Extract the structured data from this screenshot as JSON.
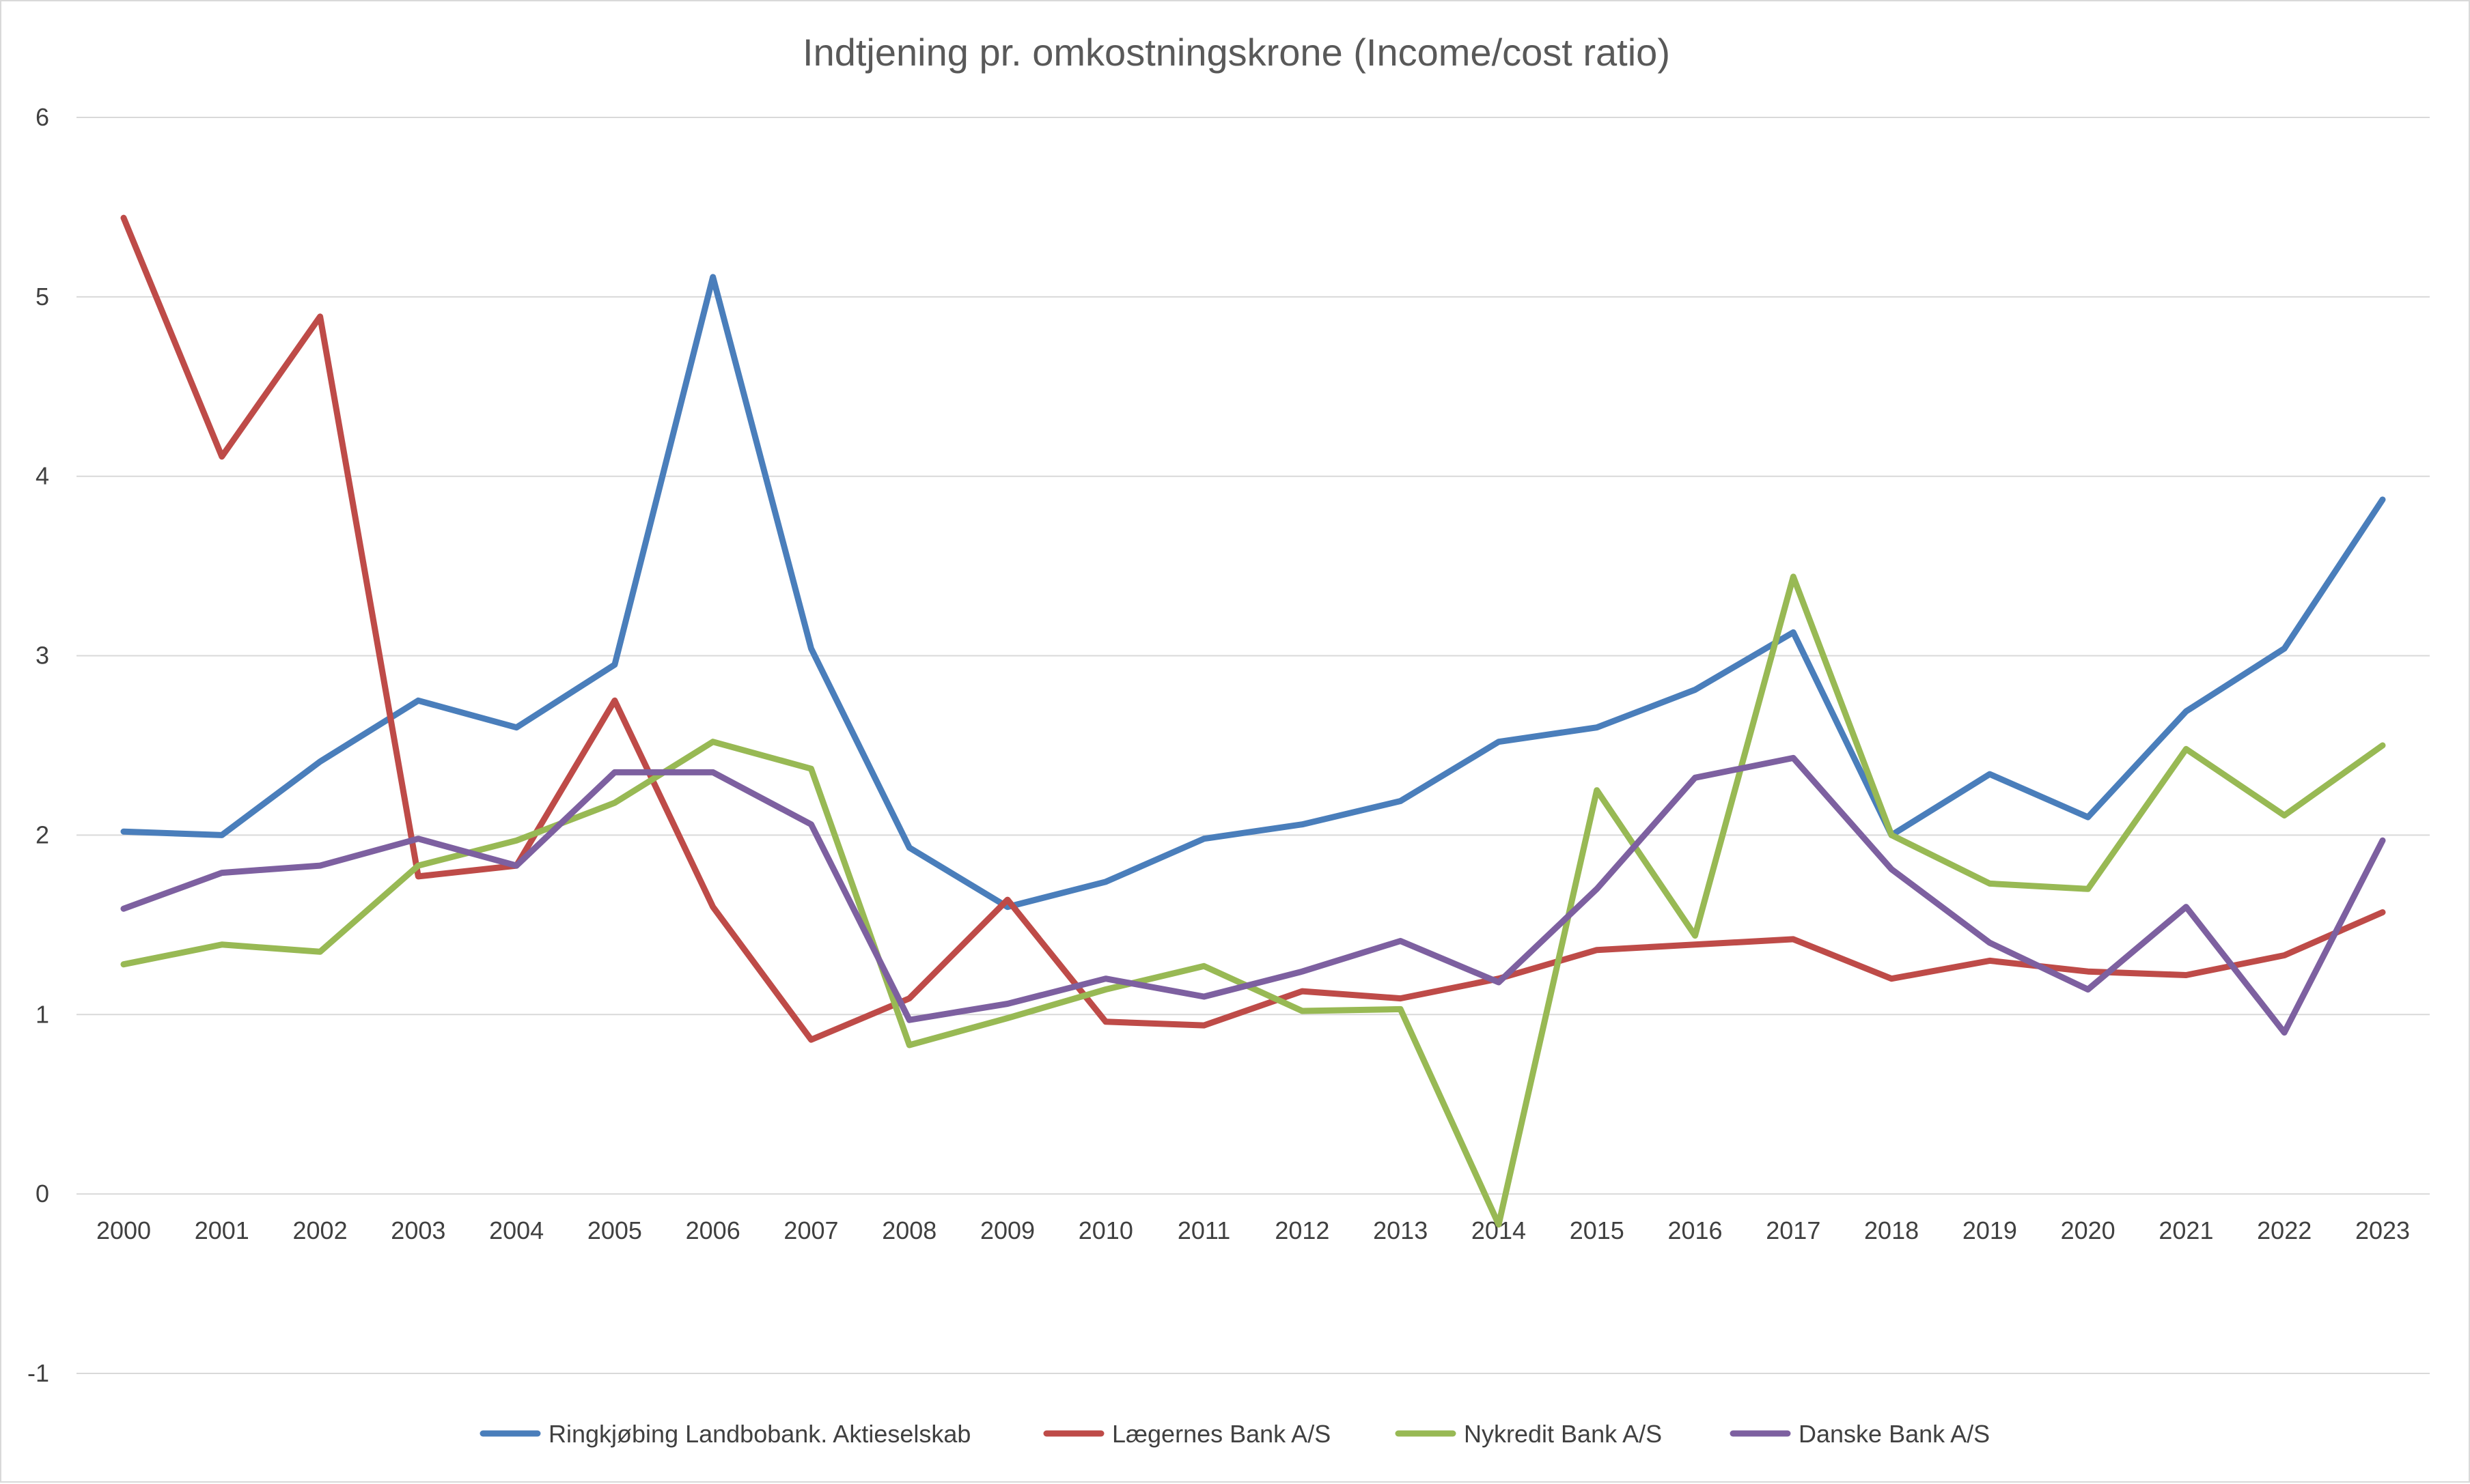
{
  "chart_data": {
    "type": "line",
    "title": "Indtjening pr. omkostningskrone (Income/cost ratio)",
    "xlabel": "",
    "ylabel": "",
    "ylim": [
      -1,
      6
    ],
    "y_ticks": [
      "6",
      "5",
      "4",
      "3",
      "2",
      "1",
      "0",
      "-1"
    ],
    "y_tick_values": [
      6,
      5,
      4,
      3,
      2,
      1,
      0,
      -1
    ],
    "grid": true,
    "legend_position": "bottom",
    "categories": [
      "2000",
      "2001",
      "2002",
      "2003",
      "2004",
      "2005",
      "2006",
      "2007",
      "2008",
      "2009",
      "2010",
      "2011",
      "2012",
      "2013",
      "2014",
      "2015",
      "2016",
      "2017",
      "2018",
      "2019",
      "2020",
      "2021",
      "2022",
      "2023"
    ],
    "series": [
      {
        "name": "Ringkjøbing Landbobank. Aktieselskab",
        "color": "#4a7ebb",
        "values": [
          2.02,
          2.0,
          2.41,
          2.75,
          2.6,
          2.95,
          5.11,
          3.04,
          1.93,
          1.6,
          1.74,
          1.98,
          2.06,
          2.19,
          2.52,
          2.6,
          2.81,
          3.13,
          2.0,
          2.34,
          2.1,
          2.69,
          3.04,
          3.87
        ]
      },
      {
        "name": "Lægernes Bank A/S",
        "color": "#be4b48",
        "values": [
          5.44,
          4.11,
          4.89,
          1.77,
          1.83,
          2.75,
          1.6,
          0.86,
          1.09,
          1.64,
          0.96,
          0.94,
          1.13,
          1.09,
          1.2,
          1.36,
          1.39,
          1.42,
          1.2,
          1.3,
          1.24,
          1.22,
          1.33,
          1.57
        ]
      },
      {
        "name": "Nykredit Bank A/S",
        "color": "#98b954",
        "values": [
          1.28,
          1.39,
          1.35,
          1.83,
          1.97,
          2.18,
          2.52,
          2.37,
          0.83,
          0.98,
          1.14,
          1.27,
          1.02,
          1.03,
          -0.17,
          2.25,
          1.44,
          3.44,
          2.0,
          1.73,
          1.7,
          2.48,
          2.11,
          2.5
        ]
      },
      {
        "name": "Danske Bank A/S",
        "color": "#7d60a0",
        "values": [
          1.59,
          1.79,
          1.83,
          1.98,
          1.83,
          2.35,
          2.35,
          2.06,
          0.97,
          1.06,
          1.2,
          1.1,
          1.24,
          1.41,
          1.18,
          1.7,
          2.32,
          2.43,
          1.81,
          1.4,
          1.14,
          1.6,
          0.9,
          1.97
        ]
      }
    ]
  }
}
